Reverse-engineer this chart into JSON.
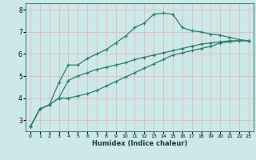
{
  "xlabel": "Humidex (Indice chaleur)",
  "bg_color": "#cce8e8",
  "grid_color": "#e8b8b8",
  "line_color": "#2d7d6e",
  "xlim": [
    -0.5,
    23.5
  ],
  "ylim": [
    2.5,
    8.3
  ],
  "yticks": [
    3,
    4,
    5,
    6,
    7,
    8
  ],
  "xticks": [
    0,
    1,
    2,
    3,
    4,
    5,
    6,
    7,
    8,
    9,
    10,
    11,
    12,
    13,
    14,
    15,
    16,
    17,
    18,
    19,
    20,
    21,
    22,
    23
  ],
  "curve1_x": [
    0,
    1,
    2,
    3,
    4,
    5,
    6,
    7,
    8,
    9,
    10,
    11,
    12,
    13,
    14,
    15,
    16,
    17,
    18,
    19,
    20,
    21,
    22,
    23
  ],
  "curve1_y": [
    2.7,
    3.5,
    3.7,
    4.7,
    5.5,
    5.5,
    5.8,
    6.0,
    6.2,
    6.5,
    6.8,
    7.2,
    7.4,
    7.8,
    7.85,
    7.8,
    7.2,
    7.05,
    7.0,
    6.9,
    6.85,
    6.75,
    6.65,
    6.6
  ],
  "curve2_x": [
    0,
    1,
    2,
    3,
    4,
    5,
    6,
    7,
    8,
    9,
    10,
    11,
    12,
    13,
    14,
    15,
    16,
    17,
    18,
    19,
    20,
    21,
    22,
    23
  ],
  "curve2_y": [
    2.7,
    3.5,
    3.7,
    4.0,
    4.0,
    4.1,
    4.2,
    4.35,
    4.55,
    4.75,
    4.95,
    5.15,
    5.35,
    5.55,
    5.75,
    5.95,
    6.05,
    6.15,
    6.25,
    6.35,
    6.5,
    6.55,
    6.6,
    6.6
  ],
  "curve3_x": [
    0,
    1,
    2,
    3,
    4,
    5,
    6,
    7,
    8,
    9,
    10,
    11,
    12,
    13,
    14,
    15,
    16,
    17,
    18,
    19,
    20,
    21,
    22,
    23
  ],
  "curve3_y": [
    2.7,
    3.5,
    3.7,
    4.0,
    4.8,
    5.0,
    5.15,
    5.3,
    5.4,
    5.5,
    5.6,
    5.75,
    5.85,
    5.95,
    6.05,
    6.15,
    6.25,
    6.35,
    6.45,
    6.5,
    6.55,
    6.6,
    6.6,
    6.6
  ]
}
